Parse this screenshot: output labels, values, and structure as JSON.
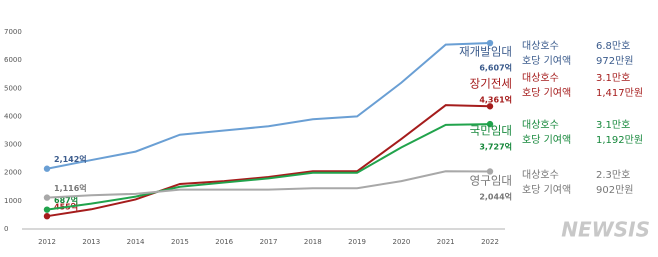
{
  "chart_data": {
    "type": "line",
    "categories": [
      "2012",
      "2013",
      "2014",
      "2015",
      "2016",
      "2017",
      "2018",
      "2019",
      "2020",
      "2021",
      "2022"
    ],
    "ylim": [
      0,
      7000
    ],
    "yticks": [
      0,
      1000,
      2000,
      3000,
      4000,
      5000,
      6000,
      7000
    ],
    "series": [
      {
        "name": "재개발임대",
        "color": "#6a9fd4",
        "label_color": "#3b5b8c",
        "values": [
          2142,
          2450,
          2750,
          3350,
          3500,
          3650,
          3900,
          4000,
          5200,
          6550,
          6607
        ],
        "value_labels": [
          "2,142억",
          null,
          null,
          null,
          null,
          null,
          null,
          null,
          null,
          null,
          "6,607억"
        ],
        "details": [
          [
            "대상호수",
            "6.8만호"
          ],
          [
            "호당 기여액",
            "972만원"
          ]
        ]
      },
      {
        "name": "장기전세",
        "color": "#a51c1c",
        "label_color": "#a51c1c",
        "values": [
          455,
          700,
          1050,
          1600,
          1700,
          1850,
          2050,
          2050,
          3200,
          4400,
          4361
        ],
        "value_labels": [
          "455억",
          null,
          null,
          null,
          null,
          null,
          null,
          null,
          null,
          null,
          "4,361억"
        ],
        "details": [
          [
            "대상호수",
            "3.1만호"
          ],
          [
            "호당 기여액",
            "1,417만원"
          ]
        ]
      },
      {
        "name": "국민임대",
        "color": "#21a34c",
        "label_color": "#17883c",
        "values": [
          687,
          900,
          1150,
          1500,
          1650,
          1800,
          2000,
          2000,
          2900,
          3700,
          3727
        ],
        "value_labels": [
          "687억",
          null,
          null,
          null,
          null,
          null,
          null,
          null,
          null,
          null,
          "3,727억"
        ],
        "details": [
          [
            "대상호수",
            "3.1만호"
          ],
          [
            "호당 기여액",
            "1,192만원"
          ]
        ]
      },
      {
        "name": "영구임대",
        "color": "#a8a8a8",
        "label_color": "#777777",
        "values": [
          1116,
          1200,
          1250,
          1400,
          1400,
          1400,
          1450,
          1450,
          1700,
          2050,
          2044
        ],
        "value_labels": [
          "1,116억",
          null,
          null,
          null,
          null,
          null,
          null,
          null,
          null,
          null,
          "2,044억"
        ],
        "details": [
          [
            "대상호수",
            "2.3만호"
          ],
          [
            "호당 기여액",
            "902만원"
          ]
        ]
      }
    ],
    "watermark": "NEWSIS"
  }
}
